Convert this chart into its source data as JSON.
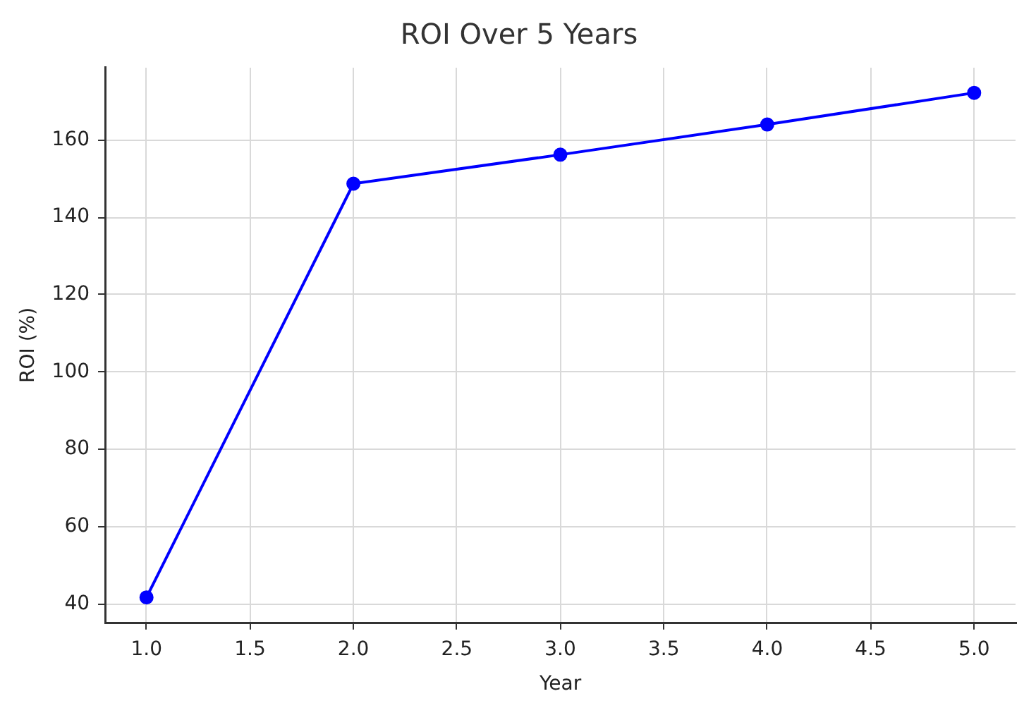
{
  "chart_data": {
    "type": "line",
    "title": "ROI Over 5 Years",
    "xlabel": "Year",
    "ylabel": "ROI (%)",
    "x": [
      1,
      2,
      3,
      4,
      5
    ],
    "series": [
      {
        "color": "#0000ff",
        "values": [
          41.7,
          148.7,
          156.2,
          164.0,
          172.2
        ]
      }
    ],
    "xlim": [
      0.8,
      5.2
    ],
    "xticks": [
      {
        "value": 1,
        "label": "1.0"
      },
      {
        "value": 1.5,
        "label": "1.5"
      },
      {
        "value": 2,
        "label": "2.0"
      },
      {
        "value": 2.5,
        "label": "2.5"
      },
      {
        "value": 3,
        "label": "3.0"
      },
      {
        "value": 3.5,
        "label": "3.5"
      },
      {
        "value": 4,
        "label": "4.0"
      },
      {
        "value": 4.5,
        "label": "4.5"
      },
      {
        "value": 5,
        "label": "5.0"
      }
    ],
    "ylim": [
      35.2,
      178.7
    ],
    "yticks": [
      40,
      60,
      80,
      100,
      120,
      140,
      160
    ],
    "grid": true,
    "legend": false,
    "marker": "circle",
    "line_style": "solid"
  }
}
